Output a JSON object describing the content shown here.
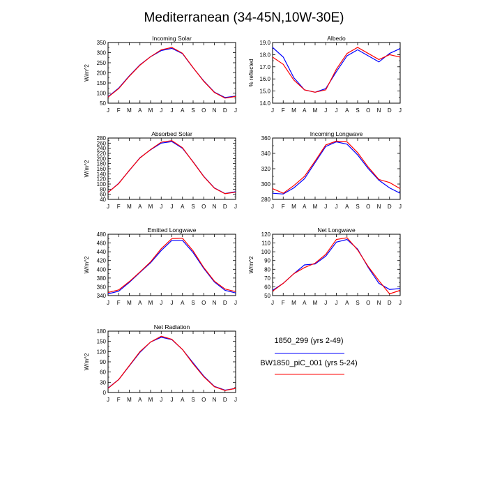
{
  "figure": {
    "title": "Mediterranean (34-45N,10W-30E)"
  },
  "legend": {
    "placement": "bottom-right",
    "entries": [
      {
        "name": "1850_299 (yrs 2-49)",
        "color": "#0000ff"
      },
      {
        "name": "BW1850_piC_001 (yrs 5-24)",
        "color": "#ff0000"
      }
    ]
  },
  "chart_data": [
    {
      "type": "line",
      "title": "Incoming Solar",
      "ylabel": "W/m^2",
      "x": [
        "J",
        "F",
        "M",
        "A",
        "M",
        "J",
        "J",
        "A",
        "S",
        "O",
        "N",
        "D",
        "J"
      ],
      "ylim": [
        50,
        350
      ],
      "yticks": [
        50,
        100,
        150,
        200,
        250,
        300,
        350
      ],
      "series": [
        {
          "name": "1850_299 (yrs 2-49)",
          "color": "#0000ff",
          "values": [
            82,
            125,
            185,
            240,
            280,
            310,
            321,
            295,
            225,
            160,
            105,
            78,
            85
          ]
        },
        {
          "name": "BW1850_piC_001 (yrs 5-24)",
          "color": "#ff0000",
          "values": [
            80,
            122,
            183,
            238,
            280,
            314,
            326,
            297,
            226,
            158,
            103,
            75,
            83
          ]
        }
      ]
    },
    {
      "type": "line",
      "title": "Albedo",
      "ylabel": "% reflected",
      "x": [
        "J",
        "F",
        "M",
        "A",
        "M",
        "J",
        "J",
        "A",
        "S",
        "O",
        "N",
        "D",
        "J"
      ],
      "ylim": [
        14.0,
        19.0
      ],
      "yticks": [
        "14.0",
        "15.0",
        "16.0",
        "17.0",
        "18.0",
        "19.0"
      ],
      "series": [
        {
          "name": "1850_299 (yrs 2-49)",
          "color": "#0000ff",
          "values": [
            18.6,
            17.8,
            16.1,
            15.1,
            14.9,
            15.2,
            16.6,
            17.9,
            18.4,
            17.9,
            17.4,
            18.1,
            18.5
          ]
        },
        {
          "name": "BW1850_piC_001 (yrs 5-24)",
          "color": "#ff0000",
          "values": [
            17.8,
            17.2,
            15.9,
            15.1,
            14.9,
            15.1,
            16.8,
            18.1,
            18.6,
            18.1,
            17.6,
            18.0,
            17.8
          ]
        }
      ]
    },
    {
      "type": "line",
      "title": "Absorbed Solar",
      "ylabel": "W/m^2",
      "x": [
        "J",
        "F",
        "M",
        "A",
        "M",
        "J",
        "J",
        "A",
        "S",
        "O",
        "N",
        "D",
        "J"
      ],
      "ylim": [
        40,
        280
      ],
      "yticks": [
        40,
        60,
        80,
        100,
        120,
        140,
        160,
        180,
        200,
        220,
        240,
        260,
        280
      ],
      "series": [
        {
          "name": "1850_299 (yrs 2-49)",
          "color": "#0000ff",
          "values": [
            67,
            103,
            153,
            203,
            234,
            260,
            266,
            240,
            187,
            130,
            85,
            63,
            70
          ]
        },
        {
          "name": "BW1850_piC_001 (yrs 5-24)",
          "color": "#ff0000",
          "values": [
            67,
            102,
            154,
            202,
            235,
            264,
            270,
            242,
            186,
            129,
            84,
            62,
            68
          ]
        }
      ]
    },
    {
      "type": "line",
      "title": "Incoming Longwave",
      "ylabel": "",
      "x": [
        "J",
        "F",
        "M",
        "A",
        "M",
        "J",
        "J",
        "A",
        "S",
        "O",
        "N",
        "D",
        "J"
      ],
      "ylim": [
        280,
        360
      ],
      "yticks": [
        280,
        300,
        320,
        340,
        360
      ],
      "series": [
        {
          "name": "1850_299 (yrs 2-49)",
          "color": "#0000ff",
          "values": [
            288,
            287,
            295,
            307,
            328,
            349,
            355,
            352,
            338,
            320,
            305,
            295,
            288
          ]
        },
        {
          "name": "BW1850_piC_001 (yrs 5-24)",
          "color": "#ff0000",
          "values": [
            294,
            288,
            298,
            310,
            330,
            351,
            356,
            355,
            341,
            322,
            306,
            302,
            294
          ]
        }
      ]
    },
    {
      "type": "line",
      "title": "Emitted Longwave",
      "ylabel": "W/m^2",
      "x": [
        "J",
        "F",
        "M",
        "A",
        "M",
        "J",
        "J",
        "A",
        "S",
        "O",
        "N",
        "D",
        "J"
      ],
      "ylim": [
        340,
        480
      ],
      "yticks": [
        340,
        360,
        380,
        400,
        420,
        440,
        460,
        480
      ],
      "series": [
        {
          "name": "1850_299 (yrs 2-49)",
          "color": "#0000ff",
          "values": [
            344,
            350,
            370,
            393,
            415,
            443,
            466,
            466,
            438,
            402,
            371,
            352,
            346
          ]
        },
        {
          "name": "BW1850_piC_001 (yrs 5-24)",
          "color": "#ff0000",
          "values": [
            347,
            353,
            372,
            394,
            417,
            447,
            470,
            471,
            442,
            404,
            373,
            355,
            349
          ]
        }
      ]
    },
    {
      "type": "line",
      "title": "Net Longwave",
      "ylabel": "W/m^2",
      "x": [
        "J",
        "F",
        "M",
        "A",
        "M",
        "J",
        "J",
        "A",
        "S",
        "O",
        "N",
        "D",
        "J"
      ],
      "ylim": [
        50,
        120
      ],
      "yticks": [
        50,
        60,
        70,
        80,
        90,
        100,
        110,
        120
      ],
      "series": [
        {
          "name": "1850_299 (yrs 2-49)",
          "color": "#0000ff",
          "values": [
            56,
            64,
            75,
            85,
            86,
            95,
            111,
            114,
            103,
            82,
            64,
            57,
            58
          ]
        },
        {
          "name": "BW1850_piC_001 (yrs 5-24)",
          "color": "#ff0000",
          "values": [
            55,
            64,
            75,
            82,
            87,
            97,
            114,
            116,
            102,
            83,
            67,
            52,
            56
          ]
        }
      ]
    },
    {
      "type": "line",
      "title": "Net Radiation",
      "ylabel": "W/m^2",
      "x": [
        "J",
        "F",
        "M",
        "A",
        "M",
        "J",
        "J",
        "A",
        "S",
        "O",
        "N",
        "D",
        "J"
      ],
      "ylim": [
        0,
        180
      ],
      "yticks": [
        0,
        30,
        60,
        90,
        120,
        150,
        180
      ],
      "series": [
        {
          "name": "1850_299 (yrs 2-49)",
          "color": "#0000ff",
          "values": [
            13,
            38,
            78,
            118,
            148,
            162,
            155,
            126,
            87,
            48,
            18,
            7,
            12
          ]
        },
        {
          "name": "BW1850_piC_001 (yrs 5-24)",
          "color": "#ff0000",
          "values": [
            12,
            38,
            79,
            120,
            148,
            165,
            156,
            126,
            84,
            46,
            17,
            6,
            12
          ]
        }
      ]
    }
  ]
}
